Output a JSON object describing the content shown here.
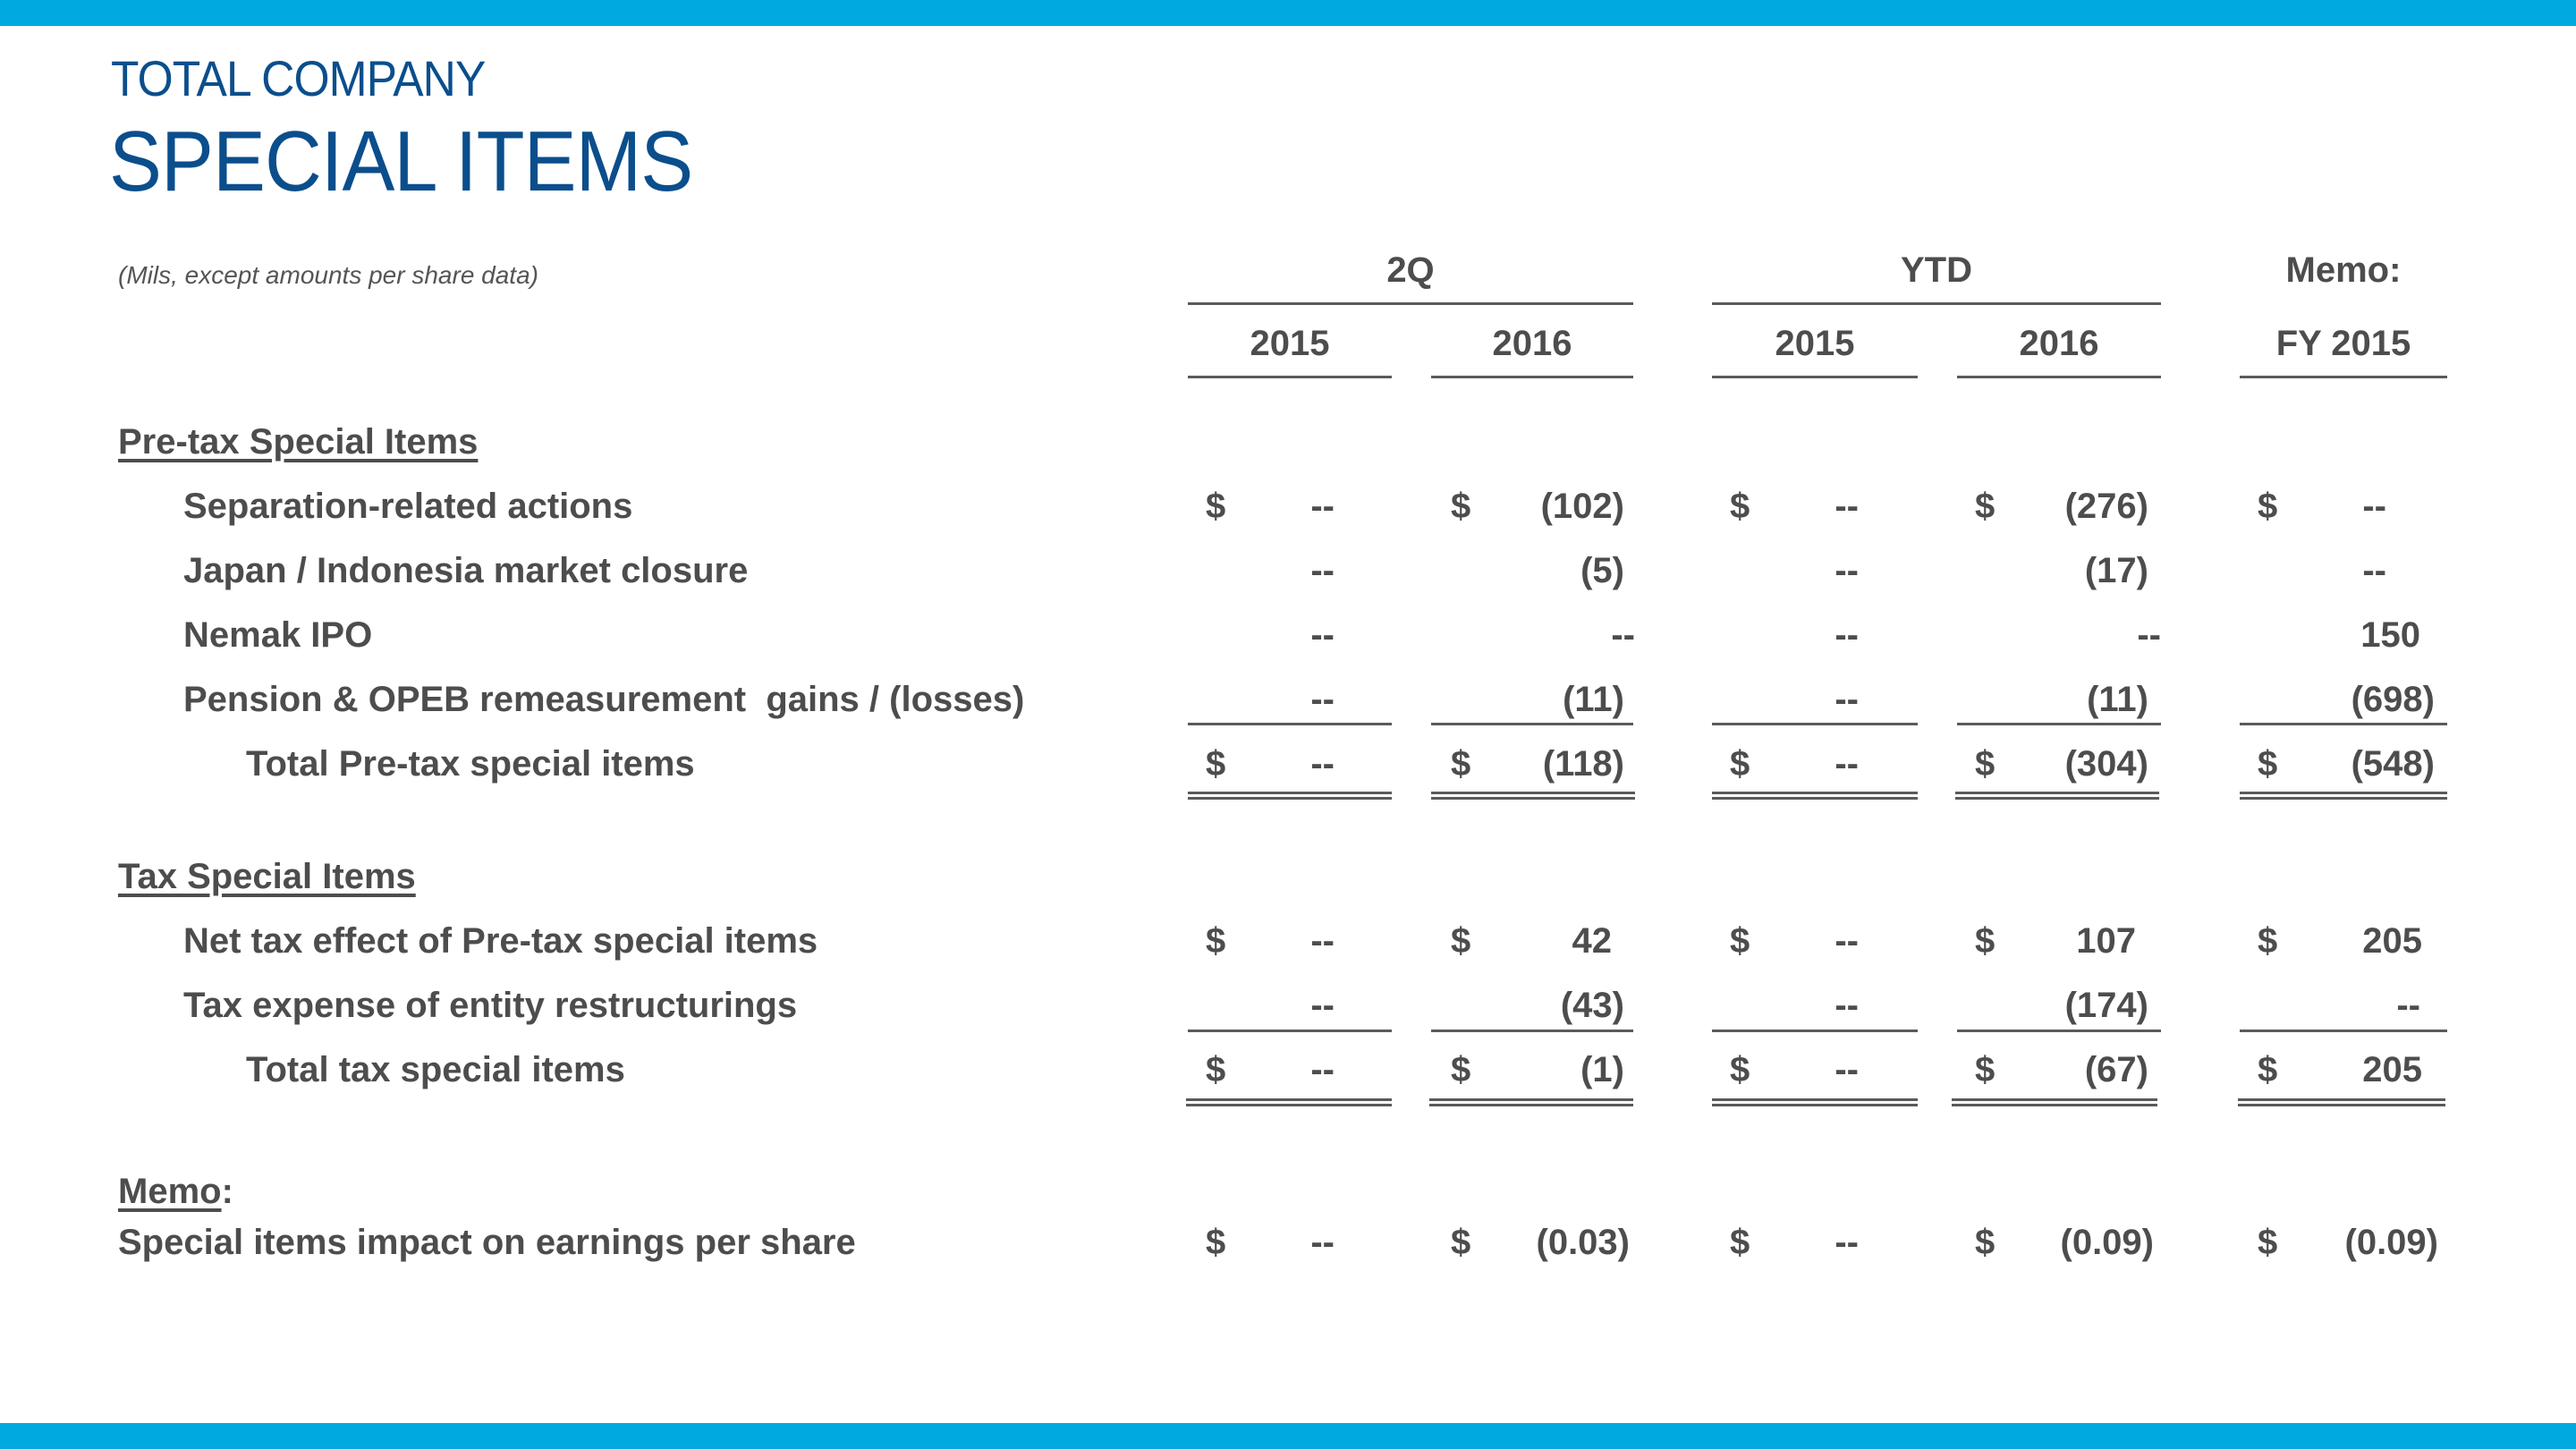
{
  "header": {
    "title_small": "TOTAL COMPANY",
    "title_large": "SPECIAL ITEMS",
    "subtitle": "(Mils, except amounts per share data)"
  },
  "columns": {
    "groups": [
      "2Q",
      "YTD",
      "Memo:"
    ],
    "years": [
      "2015",
      "2016",
      "2015",
      "2016",
      "FY 2015"
    ]
  },
  "sections": {
    "pretax": "Pre-tax Special Items",
    "tax": "Tax Special Items",
    "memo": "Memo",
    "memo_colon": ":"
  },
  "rows": [
    {
      "label": "Separation-related actions",
      "cur": "$",
      "values": [
        "--",
        "(102)",
        "--",
        "(276)",
        "--"
      ]
    },
    {
      "label": "Japan / Indonesia market closure",
      "cur": "",
      "values": [
        "--",
        "(5)",
        "--",
        "(17)",
        "--"
      ]
    },
    {
      "label": "Nemak IPO",
      "cur": "",
      "values": [
        "--",
        "--",
        "--",
        "--",
        "150"
      ]
    },
    {
      "label": "Pension & OPEB remeasurement  gains / (losses)",
      "cur": "",
      "values": [
        "--",
        "(11)",
        "--",
        "(11)",
        "(698)"
      ]
    },
    {
      "label": "Total Pre-tax special items",
      "cur": "$",
      "values": [
        "--",
        "(118)",
        "--",
        "(304)",
        "(548)"
      ]
    },
    {
      "label": "Net tax effect of Pre-tax special items",
      "cur": "$",
      "values": [
        "--",
        "42",
        "--",
        "107",
        "205"
      ]
    },
    {
      "label": "Tax expense of entity restructurings",
      "cur": "",
      "values": [
        "--",
        "(43)",
        "--",
        "(174)",
        "--"
      ]
    },
    {
      "label": "Total tax special items",
      "cur": "$",
      "values": [
        "--",
        "(1)",
        "--",
        "(67)",
        "205"
      ]
    },
    {
      "label": "Special items impact on earnings per share",
      "cur": "$",
      "values": [
        "--",
        "(0.03)",
        "--",
        "(0.09)",
        "(0.09)"
      ]
    }
  ],
  "colors": {
    "accent_band": "#00a9e0",
    "title": "#0b4e8c",
    "text": "#4d4d4d"
  }
}
